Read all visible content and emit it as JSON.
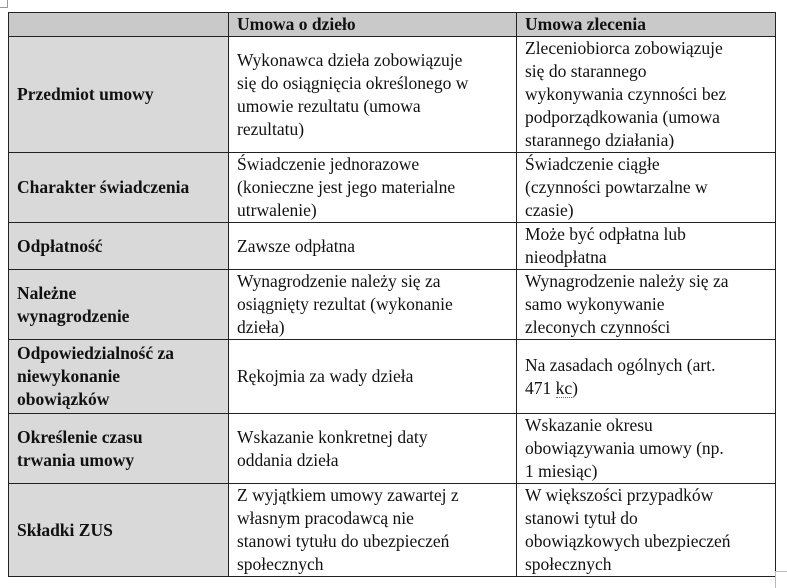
{
  "table": {
    "headers": [
      "",
      "Umowa o dzieło",
      "Umowa zlecenia"
    ],
    "rows": [
      {
        "label": [
          "Przedmiot umowy"
        ],
        "dzielo": [
          "Wykonawca dzieła zobowiązuje",
          "się do osiągnięcia określonego w",
          "umowie rezultatu (umowa",
          "rezultatu)"
        ],
        "zlecenie": [
          "Zleceniobiorca zobowiązuje",
          "się do starannego",
          "wykonywania czynności bez",
          "podporządkowania (umowa",
          "starannego działania)"
        ]
      },
      {
        "label": [
          "Charakter świadczenia"
        ],
        "dzielo": [
          "Świadczenie jednorazowe",
          "(konieczne jest jego materialne",
          "utrwalenie)"
        ],
        "zlecenie": [
          "Świadczenie ciągłe",
          "(czynności powtarzalne w",
          "czasie)"
        ]
      },
      {
        "label": [
          "Odpłatność"
        ],
        "dzielo": [
          "Zawsze odpłatna"
        ],
        "zlecenie": [
          "Może być odpłatna lub",
          "nieodpłatna"
        ]
      },
      {
        "label": [
          "Należne",
          "wynagrodzenie"
        ],
        "dzielo": [
          "Wynagrodzenie należy się za",
          "osiągnięty rezultat (wykonanie",
          "dzieła)"
        ],
        "zlecenie": [
          "Wynagrodzenie należy się za",
          "samo wykonywanie",
          "zleconych czynności"
        ]
      },
      {
        "label": [
          "Odpowiedzialność za",
          "niewykonanie",
          "obowiązków"
        ],
        "dzielo": [
          "Rękojmia za wady dzieła"
        ],
        "zlecenie": [
          "Na zasadach ogólnych (art.",
          "471 kc)"
        ]
      },
      {
        "label": [
          "Określenie czasu",
          "trwania umowy"
        ],
        "dzielo": [
          "Wskazanie konkretnej daty",
          "oddania dzieła"
        ],
        "zlecenie": [
          "Wskazanie okresu",
          "obowiązywania umowy (np.",
          "1 miesiąc)"
        ]
      },
      {
        "label": [
          "Składki ZUS"
        ],
        "dzielo": [
          "Z wyjątkiem umowy zawartej z",
          "własnym pracodawcą nie",
          "stanowi tytułu do ubezpieczeń",
          "społecznych"
        ],
        "zlecenie": [
          "W większości przypadków",
          "stanowi tytuł do",
          "obowiązkowych ubezpieczeń",
          "społecznych"
        ]
      }
    ]
  },
  "colors": {
    "header_bg": "#c9c9c9",
    "label_bg": "#d9d9d9",
    "border": "#222222"
  }
}
